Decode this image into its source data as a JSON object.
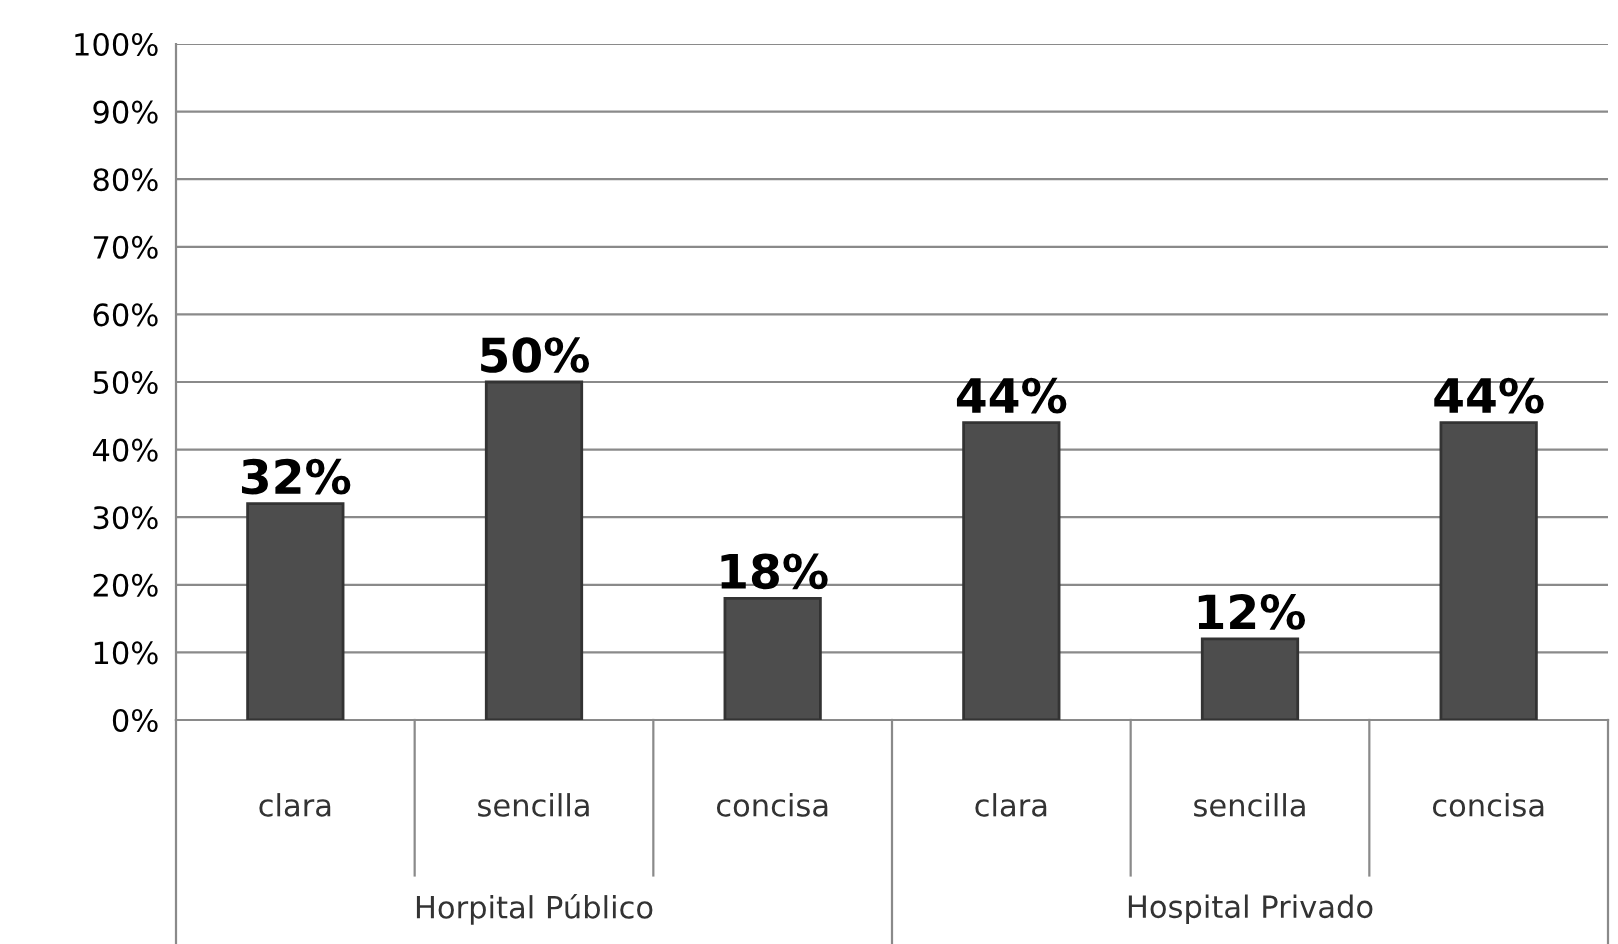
{
  "chart_data": {
    "type": "bar",
    "categories": [
      "clara",
      "sencilla",
      "concisa",
      "clara",
      "sencilla",
      "concisa"
    ],
    "values": [
      32,
      50,
      18,
      44,
      12,
      44
    ],
    "color": "#4d4d4d",
    "data_labels": true,
    "value_labels": [
      "32%",
      "50%",
      "18%",
      "44%",
      "12%",
      "44%"
    ],
    "ylim": [
      0,
      100
    ],
    "yticks": [
      {
        "value": 0,
        "label": "0%"
      },
      {
        "value": 10,
        "label": "10%"
      },
      {
        "value": 20,
        "label": "20%"
      },
      {
        "value": 30,
        "label": "30%"
      },
      {
        "value": 40,
        "label": "40%"
      },
      {
        "value": 50,
        "label": "50%"
      },
      {
        "value": 60,
        "label": "60%"
      },
      {
        "value": 70,
        "label": "70%"
      },
      {
        "value": 80,
        "label": "80%"
      },
      {
        "value": 90,
        "label": "90%"
      },
      {
        "value": 100,
        "label": "100%"
      }
    ],
    "grid": "y",
    "annotations": [
      "Horpital Público",
      "Hospital Privado"
    ]
  }
}
